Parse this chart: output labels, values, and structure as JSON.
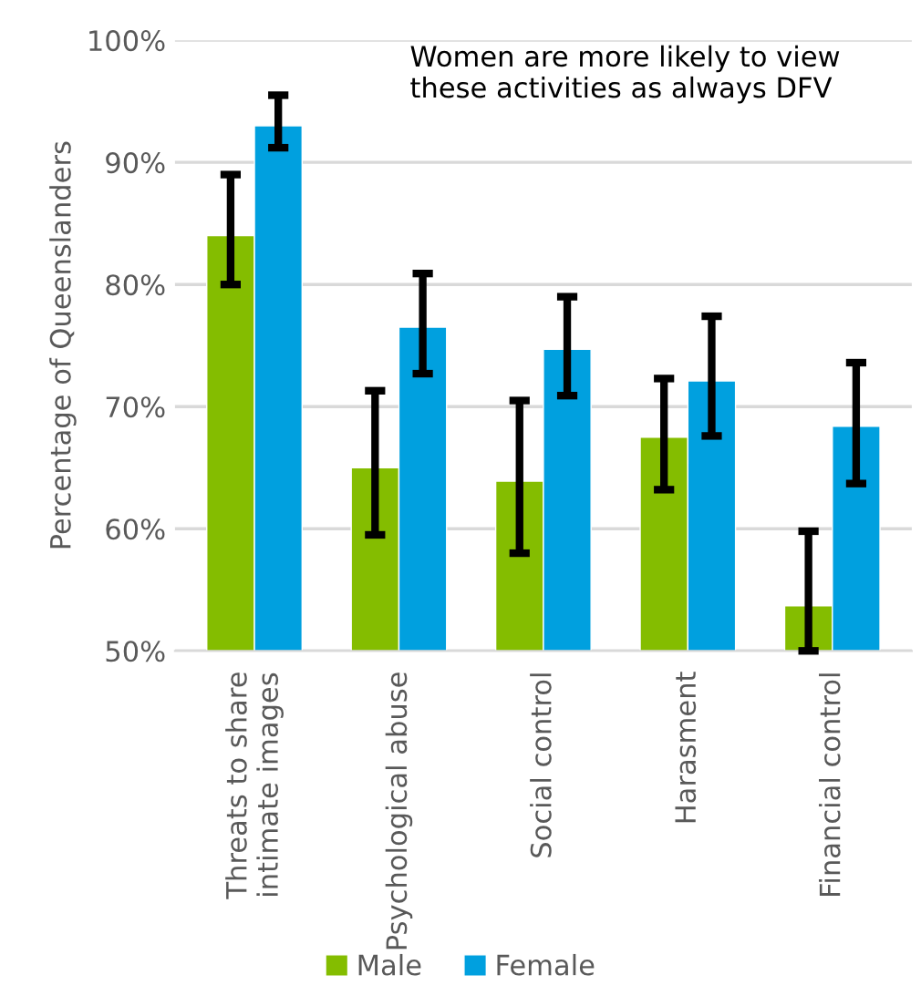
{
  "chart_data": {
    "type": "bar",
    "ylabel": "Percentage of Queenslanders",
    "categories": [
      "Threats to share\nintimate images",
      "Psychological abuse",
      "Social control",
      "Harasment",
      "Financial control"
    ],
    "series": [
      {
        "name": "Male",
        "color": "#84bd00",
        "values": [
          84.0,
          65.0,
          63.9,
          67.5,
          53.7
        ],
        "errors": [
          [
            80.0,
            89.0
          ],
          [
            59.5,
            71.3
          ],
          [
            58.0,
            70.5
          ],
          [
            63.2,
            72.3
          ],
          [
            50,
            59.8
          ]
        ]
      },
      {
        "name": "Female",
        "color": "#00a0df",
        "values": [
          93.0,
          76.5,
          74.7,
          72.1,
          68.4
        ],
        "errors": [
          [
            91.2,
            95.5
          ],
          [
            72.7,
            80.9
          ],
          [
            70.9,
            79.0
          ],
          [
            67.6,
            77.4
          ],
          [
            63.7,
            73.6
          ]
        ]
      }
    ],
    "ylim": [
      50,
      100
    ],
    "yticks": [
      {
        "value": 50,
        "label": "50%"
      },
      {
        "value": 60,
        "label": "60%"
      },
      {
        "value": 70,
        "label": "70%"
      },
      {
        "value": 80,
        "label": "80%"
      },
      {
        "value": 90,
        "label": "90%"
      },
      {
        "value": 100,
        "label": "100%"
      }
    ],
    "grid": "y",
    "legend": "bottom",
    "annotations": [
      "Women are more likely to view these activities as always DFV"
    ]
  }
}
